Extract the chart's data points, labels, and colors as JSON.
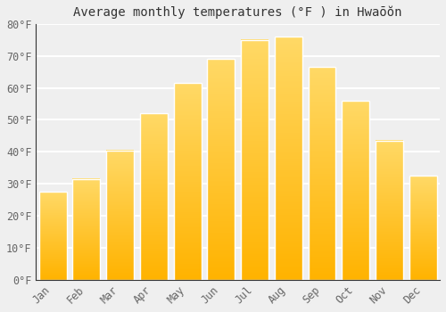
{
  "title": "Average monthly temperatures (°F ) in Hwaōŏn",
  "months": [
    "Jan",
    "Feb",
    "Mar",
    "Apr",
    "May",
    "Jun",
    "Jul",
    "Aug",
    "Sep",
    "Oct",
    "Nov",
    "Dec"
  ],
  "values": [
    27.5,
    31.5,
    40.5,
    52.0,
    61.5,
    69.0,
    75.0,
    76.0,
    66.5,
    56.0,
    43.5,
    32.5
  ],
  "bar_color_bottom": "#FFB300",
  "bar_color_top": "#FFD966",
  "bar_edge_color": "#FFFFFF",
  "ylim": [
    0,
    80
  ],
  "yticks": [
    0,
    10,
    20,
    30,
    40,
    50,
    60,
    70,
    80
  ],
  "ytick_labels": [
    "0°F",
    "10°F",
    "20°F",
    "30°F",
    "40°F",
    "50°F",
    "60°F",
    "70°F",
    "80°F"
  ],
  "background_color": "#EFEFEF",
  "grid_color": "#FFFFFF",
  "title_fontsize": 10,
  "tick_fontsize": 8.5,
  "bar_width": 0.82
}
